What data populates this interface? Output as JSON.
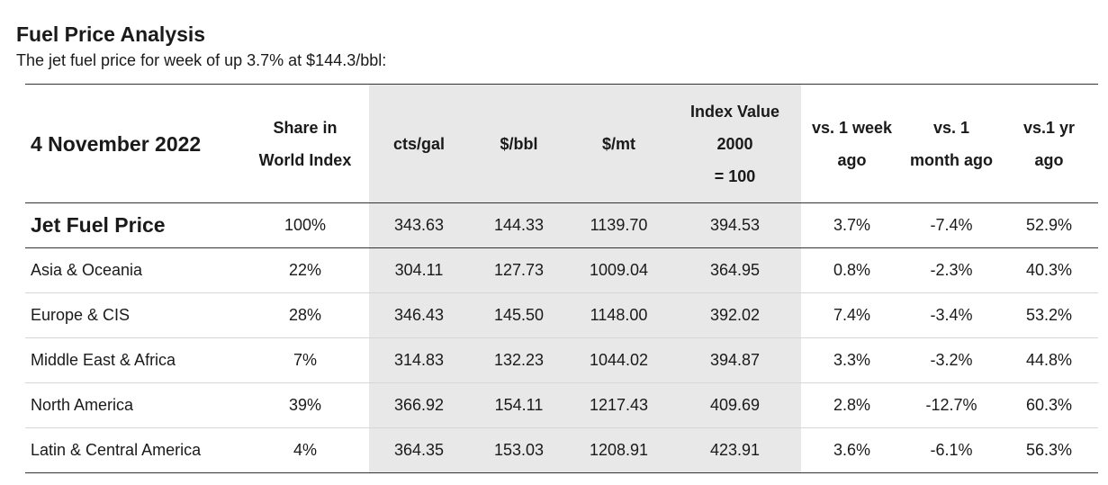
{
  "title": "Fuel Price Analysis",
  "subtitle": "The jet fuel price for week of up 3.7% at $144.3/bbl:",
  "table": {
    "date": "4 November 2022",
    "headers": {
      "share": [
        "Share in",
        "World Index"
      ],
      "cts_gal": "cts/gal",
      "usd_bbl": "$/bbl",
      "usd_mt": "$/mt",
      "index_value": [
        "Index Value",
        "2000",
        "= 100"
      ],
      "vs_week": [
        "vs. 1 week",
        "ago"
      ],
      "vs_month": [
        "vs. 1",
        "month ago"
      ],
      "vs_year": [
        "vs.1 yr",
        "ago"
      ]
    },
    "rows": [
      {
        "region": "Jet Fuel Price",
        "share": "100%",
        "cts_gal": "343.63",
        "usd_bbl": "144.33",
        "usd_mt": "1139.70",
        "index": "394.53",
        "vs_week": "3.7%",
        "vs_month": "-7.4%",
        "vs_year": "52.9%"
      },
      {
        "region": "Asia & Oceania",
        "share": "22%",
        "cts_gal": "304.11",
        "usd_bbl": "127.73",
        "usd_mt": "1009.04",
        "index": "364.95",
        "vs_week": "0.8%",
        "vs_month": "-2.3%",
        "vs_year": "40.3%"
      },
      {
        "region": "Europe & CIS",
        "share": "28%",
        "cts_gal": "346.43",
        "usd_bbl": "145.50",
        "usd_mt": "1148.00",
        "index": "392.02",
        "vs_week": "7.4%",
        "vs_month": "-3.4%",
        "vs_year": "53.2%"
      },
      {
        "region": "Middle East & Africa",
        "share": "7%",
        "cts_gal": "314.83",
        "usd_bbl": "132.23",
        "usd_mt": "1044.02",
        "index": "394.87",
        "vs_week": "3.3%",
        "vs_month": "-3.2%",
        "vs_year": "44.8%"
      },
      {
        "region": "North America",
        "share": "39%",
        "cts_gal": "366.92",
        "usd_bbl": "154.11",
        "usd_mt": "1217.43",
        "index": "409.69",
        "vs_week": "2.8%",
        "vs_month": "-12.7%",
        "vs_year": "60.3%"
      },
      {
        "region": "Latin & Central America",
        "share": "4%",
        "cts_gal": "364.35",
        "usd_bbl": "153.03",
        "usd_mt": "1208.91",
        "index": "423.91",
        "vs_week": "3.6%",
        "vs_month": "-6.1%",
        "vs_year": "56.3%"
      }
    ]
  }
}
